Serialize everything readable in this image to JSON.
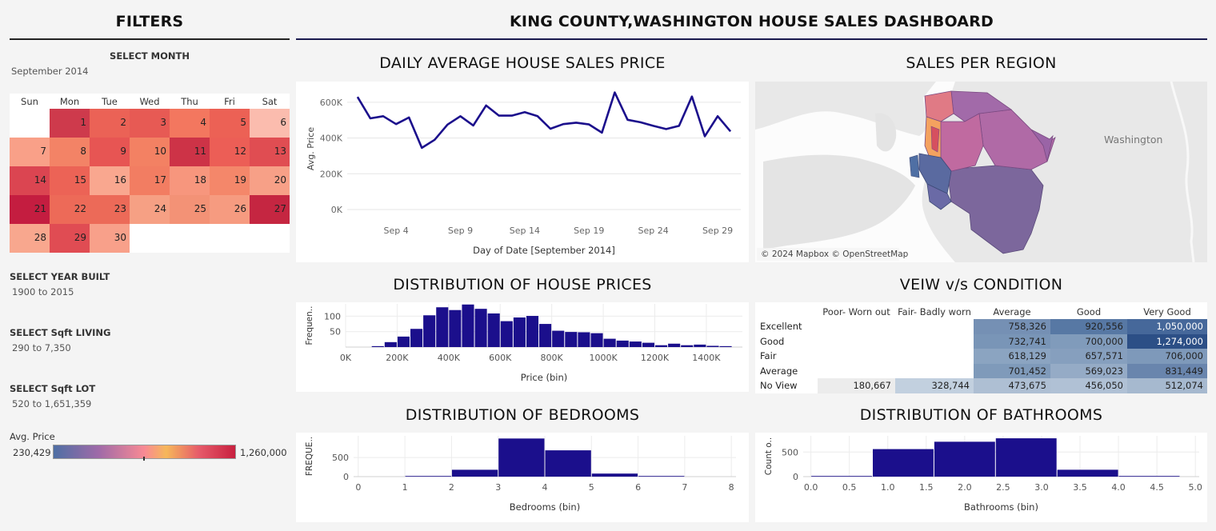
{
  "filters": {
    "title": "FILTERS",
    "month": {
      "label": "SELECT MONTH",
      "value": "September 2014"
    },
    "calendar": {
      "weekdays": [
        "Sun",
        "Mon",
        "Tue",
        "Wed",
        "Thu",
        "Fri",
        "Sat"
      ],
      "weeks": [
        [
          null,
          {
            "d": "1",
            "c": "#ce3a4c"
          },
          {
            "d": "2",
            "c": "#eb6256"
          },
          {
            "d": "3",
            "c": "#e75a54"
          },
          {
            "d": "4",
            "c": "#f3775f"
          },
          {
            "d": "5",
            "c": "#ec6155"
          },
          {
            "d": "6",
            "c": "#fbbcae"
          }
        ],
        [
          {
            "d": "7",
            "c": "#f9a088"
          },
          {
            "d": "8",
            "c": "#f38366"
          },
          {
            "d": "9",
            "c": "#e75553"
          },
          {
            "d": "10",
            "c": "#f38163"
          },
          {
            "d": "11",
            "c": "#cd3347"
          },
          {
            "d": "12",
            "c": "#ec5e56"
          },
          {
            "d": "13",
            "c": "#e04d52"
          }
        ],
        [
          {
            "d": "14",
            "c": "#db4551"
          },
          {
            "d": "15",
            "c": "#ec6356"
          },
          {
            "d": "16",
            "c": "#f9a78f"
          },
          {
            "d": "17",
            "c": "#f27d62"
          },
          {
            "d": "18",
            "c": "#f7967d"
          },
          {
            "d": "19",
            "c": "#f4876a"
          },
          {
            "d": "20",
            "c": "#f7a087"
          }
        ],
        [
          {
            "d": "21",
            "c": "#c41d40"
          },
          {
            "d": "22",
            "c": "#ed6a58"
          },
          {
            "d": "23",
            "c": "#ec6a58"
          },
          {
            "d": "24",
            "c": "#f6a084"
          },
          {
            "d": "25",
            "c": "#f39276"
          },
          {
            "d": "26",
            "c": "#f69b80"
          },
          {
            "d": "27",
            "c": "#c52641"
          }
        ],
        [
          {
            "d": "28",
            "c": "#f8a78e"
          },
          {
            "d": "29",
            "c": "#e04c53"
          },
          {
            "d": "30",
            "c": "#f8a08a"
          },
          null,
          null,
          null,
          null
        ]
      ]
    },
    "year_built": {
      "label": "SELECT YEAR BUILT",
      "value": "1900 to 2015"
    },
    "sqft_living": {
      "label": "SELECT Sqft LIVING",
      "value": "290 to 7,350"
    },
    "sqft_lot": {
      "label": "SELECT Sqft LOT",
      "value": "520 to 1,651,359"
    },
    "avg_price_legend": {
      "label": "Avg. Price",
      "min": "230,429",
      "max": "1,260,000"
    }
  },
  "dashboard": {
    "title": "KING COUNTY,WASHINGTON HOUSE SALES DASHBOARD"
  },
  "daily_price": {
    "title": "DAILY AVERAGE HOUSE SALES PRICE",
    "chart_data": {
      "type": "line",
      "title": "DAILY AVERAGE HOUSE SALES PRICE",
      "xlabel": "Day of Date [September 2014]",
      "ylabel": "Avg. Price",
      "x_ticks": [
        "Sep 4",
        "Sep 9",
        "Sep 14",
        "Sep 19",
        "Sep 24",
        "Sep 29"
      ],
      "x_tick_days": [
        4,
        9,
        14,
        19,
        24,
        29
      ],
      "y_ticks": [
        "0K",
        "200K",
        "400K",
        "600K"
      ],
      "y_tick_values": [
        0,
        200000,
        400000,
        600000
      ],
      "ylim": [
        0,
        680000
      ],
      "xlim": [
        0.2,
        30.8
      ],
      "days": [
        1,
        2,
        3,
        4,
        5,
        6,
        7,
        8,
        9,
        10,
        11,
        12,
        13,
        14,
        15,
        16,
        17,
        18,
        19,
        20,
        21,
        22,
        23,
        24,
        25,
        26,
        27,
        28,
        29,
        30
      ],
      "values": [
        630000,
        510000,
        522000,
        478000,
        515000,
        345000,
        390000,
        475000,
        522000,
        470000,
        582000,
        525000,
        525000,
        545000,
        522000,
        452000,
        478000,
        486000,
        476000,
        430000,
        655000,
        502000,
        488000,
        468000,
        450000,
        468000,
        632000,
        410000,
        522000,
        437000
      ],
      "color": "#1b0f8c"
    }
  },
  "region_map": {
    "title": "SALES PER REGION",
    "state_label": "Washington",
    "attribution": "© 2024 Mapbox © OpenStreetMap"
  },
  "price_dist": {
    "title": "DISTRIBUTION OF HOUSE PRICES",
    "chart_data": {
      "type": "bar",
      "title": "DISTRIBUTION OF HOUSE PRICES",
      "xlabel": "Price (bin)",
      "ylabel": "Frequen..",
      "bin_width": 50000,
      "bins_start": [
        100000,
        150000,
        200000,
        250000,
        300000,
        350000,
        400000,
        450000,
        500000,
        550000,
        600000,
        650000,
        700000,
        750000,
        800000,
        850000,
        900000,
        950000,
        1000000,
        1050000,
        1100000,
        1150000,
        1200000,
        1250000,
        1300000,
        1350000,
        1400000,
        1450000
      ],
      "values": [
        3,
        16,
        34,
        59,
        103,
        129,
        120,
        138,
        124,
        109,
        84,
        96,
        101,
        75,
        53,
        49,
        48,
        45,
        27,
        21,
        18,
        14,
        6,
        11,
        6,
        8,
        4,
        3
      ],
      "x_ticks": [
        "0K",
        "200K",
        "400K",
        "600K",
        "800K",
        "1000K",
        "1200K",
        "1400K"
      ],
      "x_tick_values": [
        0,
        200000,
        400000,
        600000,
        800000,
        1000000,
        1200000,
        1400000
      ],
      "y_ticks": [
        "50",
        "100"
      ],
      "y_tick_values": [
        50,
        100
      ],
      "xlim": [
        0,
        1540000
      ],
      "ylim": [
        0,
        140
      ],
      "color": "#1b0f8c"
    }
  },
  "view_condition": {
    "title": "VEIW v/s CONDITION",
    "columns": [
      "Poor- Worn out",
      "Fair- Badly worn",
      "Average",
      "Good",
      "Very Good"
    ],
    "rows": [
      {
        "label": "Excellent",
        "cells": [
          null,
          null,
          {
            "v": "758,326",
            "c": "#7590b4"
          },
          {
            "v": "920,556",
            "c": "#5778a4"
          },
          {
            "v": "1,050,000",
            "c": "#46689a"
          }
        ]
      },
      {
        "label": "Good",
        "cells": [
          null,
          null,
          {
            "v": "732,741",
            "c": "#7995b7"
          },
          {
            "v": "700,000",
            "c": "#809bbb"
          },
          {
            "v": "1,274,000",
            "c": "#2c4f86"
          }
        ]
      },
      {
        "label": "Fair",
        "cells": [
          null,
          null,
          {
            "v": "618,129",
            "c": "#8ba4c1"
          },
          {
            "v": "657,571",
            "c": "#869fbe"
          },
          {
            "v": "706,000",
            "c": "#7e99ba"
          }
        ]
      },
      {
        "label": "Average",
        "cells": [
          null,
          null,
          {
            "v": "701,452",
            "c": "#7f9aba"
          },
          {
            "v": "569,023",
            "c": "#95abc6"
          },
          {
            "v": "831,449",
            "c": "#6985ad"
          }
        ]
      },
      {
        "label": "No View",
        "cells": [
          {
            "v": "180,667",
            "c": "#ececec"
          },
          {
            "v": "328,744",
            "c": "#c2d0df"
          },
          {
            "v": "473,675",
            "c": "#aebfd3"
          },
          {
            "v": "456,050",
            "c": "#b0c1d5"
          },
          {
            "v": "512,074",
            "c": "#a6b9cf"
          }
        ]
      }
    ]
  },
  "bedroom_dist": {
    "title": "DISTRIBUTION OF BEDROOMS",
    "chart_data": {
      "type": "bar",
      "title": "DISTRIBUTION OF BEDROOMS",
      "xlabel": "Bedrooms (bin)",
      "ylabel": "FREQUE..",
      "bins_start": [
        1,
        2,
        3,
        4,
        5,
        6
      ],
      "bin_width": 1,
      "values": [
        5,
        180,
        1000,
        690,
        80,
        8
      ],
      "x_ticks": [
        "0",
        "1",
        "2",
        "3",
        "4",
        "5",
        "6",
        "7",
        "8"
      ],
      "x_tick_values": [
        0,
        1,
        2,
        3,
        4,
        5,
        6,
        7,
        8
      ],
      "y_ticks": [
        "0",
        "500"
      ],
      "y_tick_values": [
        0,
        500
      ],
      "xlim": [
        -0.1,
        8.1
      ],
      "ylim": [
        0,
        1070
      ],
      "color": "#1b0f8c"
    }
  },
  "bathroom_dist": {
    "title": "DISTRIBUTION OF BATHROOMS",
    "chart_data": {
      "type": "bar",
      "title": "DISTRIBUTION OF BATHROOMS",
      "xlabel": "Bathrooms (bin)",
      "ylabel": "Count o..",
      "bins": [
        [
          0.0,
          0.8,
          3
        ],
        [
          0.8,
          1.6,
          560
        ],
        [
          1.6,
          2.4,
          710
        ],
        [
          2.4,
          3.2,
          780
        ],
        [
          3.2,
          4.0,
          140
        ],
        [
          4.0,
          4.8,
          5
        ]
      ],
      "x_ticks": [
        "0.0",
        "0.5",
        "1.0",
        "1.5",
        "2.0",
        "2.5",
        "3.0",
        "3.5",
        "4.0",
        "4.5",
        "5.0"
      ],
      "x_tick_values": [
        0,
        0.5,
        1,
        1.5,
        2,
        2.5,
        3,
        3.5,
        4,
        4.5,
        5
      ],
      "y_ticks": [
        "0",
        "500"
      ],
      "y_tick_values": [
        0,
        500
      ],
      "xlim": [
        -0.1,
        5.05
      ],
      "ylim": [
        0,
        830
      ],
      "color": "#1b0f8c"
    }
  }
}
